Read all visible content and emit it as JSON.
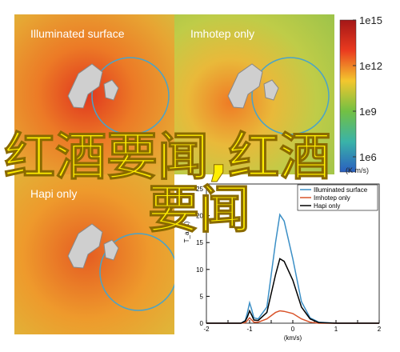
{
  "chart_data": [
    {
      "type": "heatmap",
      "panels": [
        "Illuminated surface",
        "Imhotep only",
        "Hapi only"
      ],
      "colorbar": {
        "log": true,
        "lim": [
          100000,
          1000000000000000
        ],
        "ticks": [
          {
            "value": 1000000000000000,
            "label": "1e15"
          },
          {
            "value": 1000000000000,
            "label": "1e12"
          },
          {
            "value": 1000000000,
            "label": "1e9"
          },
          {
            "value": 1000000,
            "label": "1e6"
          }
        ],
        "label": "(K m/s)"
      }
    },
    {
      "type": "line",
      "xlabel": "(km/s)",
      "ylabel": "T_a (K)",
      "x": [
        -2,
        -1.5,
        -1.2,
        -1.1,
        -1.05,
        -1,
        -0.95,
        -0.9,
        -0.8,
        -0.6,
        -0.4,
        -0.3,
        -0.2,
        0,
        0.2,
        0.4,
        0.6,
        1,
        1.5,
        2
      ],
      "series": [
        {
          "name": "Illuminated surface",
          "color": "#3b8fc6",
          "values": [
            0,
            0,
            0,
            0.5,
            2,
            3.8,
            2.5,
            1,
            0.8,
            3,
            15,
            20.2,
            19,
            12,
            4,
            1,
            0.2,
            0,
            0,
            0
          ]
        },
        {
          "name": "Imhotep only",
          "color": "#d9542b",
          "values": [
            0,
            0,
            0,
            0.1,
            0.5,
            1,
            0.6,
            0.2,
            0.2,
            0.8,
            2,
            2.3,
            2.2,
            1.8,
            0.8,
            0.2,
            0,
            0,
            0,
            0
          ]
        },
        {
          "name": "Hapi only",
          "color": "#000000",
          "values": [
            0,
            0,
            0,
            0.4,
            1.2,
            2.3,
            1.5,
            0.6,
            0.5,
            2,
            9,
            12,
            11.5,
            8,
            3,
            0.8,
            0.1,
            0,
            0,
            0
          ]
        }
      ],
      "xlim": [
        -2,
        2
      ],
      "xticks": [
        -2,
        -1.5,
        -1,
        -0.5,
        0,
        0.5,
        1,
        1.5,
        2
      ],
      "xticklabels": [
        -2,
        -1,
        0,
        1,
        2
      ],
      "ylim": [
        0,
        25
      ],
      "yticks": [
        0,
        5,
        10,
        15,
        20,
        25
      ],
      "legend": "upper-right"
    }
  ],
  "overlay": [
    "红酒要闻,红酒",
    "要闻"
  ]
}
